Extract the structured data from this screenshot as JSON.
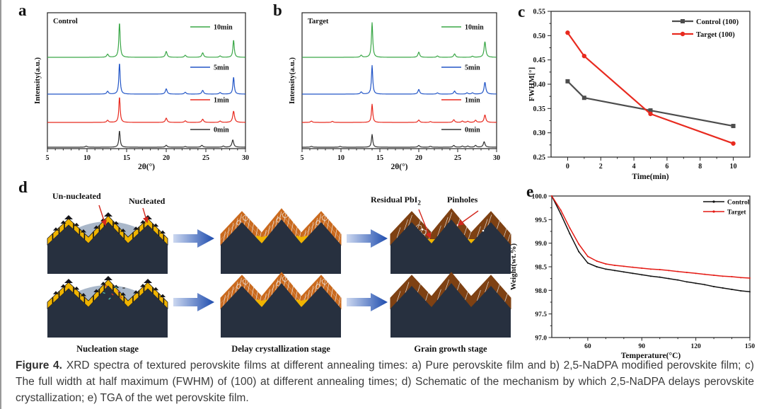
{
  "panels": {
    "a": "a",
    "b": "b",
    "c": "c",
    "d": "d",
    "e": "e"
  },
  "caption": {
    "label": "Figure 4.",
    "text": "XRD spectra of textured perovskite films at different annealing times: a) Pure perovskite film and b) 2,5-NaDPA modified perovskite film; c) The full width at half maximum (FWHM) of (100) at different annealing times; d) Schematic of the mechanism by which 2,5-NaDPA delays perovskite crystallization; e) TGA of the wet perovskite film."
  },
  "schematic": {
    "unnucleated": "Un-nucleated",
    "nucleated": "Nucleated",
    "residual_main": "Residual PbI",
    "residual_sub": "2",
    "pinholes": "Pinholes",
    "stage1": "Nucleation stage",
    "stage2": "Delay crystallization stage",
    "stage3": "Grain growth stage"
  },
  "colors": {
    "green": "#3aa747",
    "blue": "#2356c7",
    "red": "#e82a1f",
    "dark": "#333333",
    "gray_series": "#4d4d4d",
    "substrate": "#27303f",
    "gold": "#f0b400",
    "dome": "#a9b7c9",
    "orange": "#ca6a1e",
    "brown": "#7e4113",
    "boundary": "#eeeeee",
    "arrow_light": "#ccd8f0",
    "arrow_dark": "#1e4cae",
    "annotation_red": "#d3281e"
  },
  "chart_data": [
    {
      "id": "xrd-control",
      "type": "line",
      "panel": "a",
      "inset_label": "Control",
      "xlabel": "2θ(°)",
      "ylabel": "Intensity(a.u.)",
      "xlim": [
        5,
        30
      ],
      "xticks": [
        5,
        10,
        15,
        20,
        25,
        30
      ],
      "note": "stacked XRD traces, intensity in arbitrary units, peaks given as [2theta, relative height]",
      "series": [
        {
          "name": "10min",
          "color": "#3aa747",
          "peaks": [
            [
              12.6,
              0.09
            ],
            [
              14.1,
              1.0
            ],
            [
              20.0,
              0.17
            ],
            [
              22.4,
              0.06
            ],
            [
              24.6,
              0.13
            ],
            [
              26.8,
              0.04
            ],
            [
              28.5,
              0.5
            ]
          ]
        },
        {
          "name": "5min",
          "color": "#2356c7",
          "peaks": [
            [
              12.6,
              0.09
            ],
            [
              14.1,
              1.0
            ],
            [
              20.0,
              0.17
            ],
            [
              22.4,
              0.06
            ],
            [
              24.6,
              0.12
            ],
            [
              26.8,
              0.05
            ],
            [
              28.5,
              0.55
            ]
          ]
        },
        {
          "name": "1min",
          "color": "#e82a1f",
          "peaks": [
            [
              12.6,
              0.08
            ],
            [
              14.1,
              0.95
            ],
            [
              20.0,
              0.16
            ],
            [
              22.4,
              0.06
            ],
            [
              24.6,
              0.12
            ],
            [
              26.8,
              0.05
            ],
            [
              28.5,
              0.42
            ]
          ]
        },
        {
          "name": "0min",
          "color": "#333333",
          "peaks": [
            [
              9.9,
              0.05
            ],
            [
              14.1,
              0.75
            ],
            [
              20.0,
              0.09
            ],
            [
              22.4,
              0.03
            ],
            [
              24.5,
              0.09
            ],
            [
              27.2,
              0.05
            ],
            [
              28.4,
              0.33
            ]
          ]
        }
      ]
    },
    {
      "id": "xrd-target",
      "type": "line",
      "panel": "b",
      "inset_label": "Target",
      "xlabel": "2θ(°)",
      "ylabel": "Intensity(a.u.)",
      "xlim": [
        5,
        30
      ],
      "xticks": [
        5,
        10,
        15,
        20,
        25,
        30
      ],
      "series": [
        {
          "name": "10min",
          "color": "#3aa747",
          "peaks": [
            [
              12.6,
              0.06
            ],
            [
              14.0,
              1.0
            ],
            [
              20.0,
              0.15
            ],
            [
              22.4,
              0.04
            ],
            [
              24.6,
              0.1
            ],
            [
              26.9,
              0.03
            ],
            [
              28.5,
              0.45
            ]
          ]
        },
        {
          "name": "5min",
          "color": "#2356c7",
          "peaks": [
            [
              12.6,
              0.07
            ],
            [
              14.0,
              0.92
            ],
            [
              20.0,
              0.15
            ],
            [
              22.4,
              0.04
            ],
            [
              24.6,
              0.1
            ],
            [
              26.2,
              0.04
            ],
            [
              26.9,
              0.04
            ],
            [
              28.5,
              0.38
            ]
          ]
        },
        {
          "name": "1min",
          "color": "#e82a1f",
          "peaks": [
            [
              6.2,
              0.05
            ],
            [
              8.9,
              0.04
            ],
            [
              14.0,
              0.68
            ],
            [
              20.0,
              0.09
            ],
            [
              21.5,
              0.03
            ],
            [
              24.5,
              0.1
            ],
            [
              25.6,
              0.05
            ],
            [
              26.3,
              0.04
            ],
            [
              27.3,
              0.08
            ],
            [
              28.5,
              0.28
            ]
          ]
        },
        {
          "name": "0min",
          "color": "#333333",
          "peaks": [
            [
              6.2,
              0.04
            ],
            [
              9.9,
              0.04
            ],
            [
              14.0,
              0.58
            ],
            [
              20.0,
              0.08
            ],
            [
              21.5,
              0.04
            ],
            [
              24.5,
              0.08
            ],
            [
              25.6,
              0.05
            ],
            [
              26.3,
              0.05
            ],
            [
              27.3,
              0.08
            ],
            [
              28.4,
              0.25
            ]
          ]
        }
      ]
    },
    {
      "id": "fwhm",
      "type": "line",
      "panel": "c",
      "xlabel": "Time(min)",
      "ylabel": "FWHM[°]",
      "xlim": [
        -1,
        11
      ],
      "ylim": [
        0.25,
        0.55
      ],
      "xticks": [
        0,
        2,
        4,
        6,
        8,
        10
      ],
      "yticks": [
        "0.25",
        "0.30",
        "0.35",
        "0.40",
        "0.45",
        "0.50",
        "0.55"
      ],
      "x": [
        0,
        1,
        5,
        10
      ],
      "series": [
        {
          "name": "Control (100)",
          "color": "#4d4d4d",
          "marker": "square",
          "values": [
            0.406,
            0.372,
            0.346,
            0.314
          ]
        },
        {
          "name": "Target (100)",
          "color": "#e82a1f",
          "marker": "circle",
          "values": [
            0.506,
            0.458,
            0.339,
            0.278
          ]
        }
      ]
    },
    {
      "id": "tga",
      "type": "line",
      "panel": "e",
      "xlabel": "Temperature(°C)",
      "ylabel": "Weight(wt.%)",
      "xlim": [
        40,
        150
      ],
      "ylim": [
        97.0,
        100.0
      ],
      "xticks": [
        60,
        90,
        120,
        150
      ],
      "yticks": [
        "97.0",
        "97.5",
        "98.0",
        "98.5",
        "99.0",
        "99.5",
        "100.0"
      ],
      "series": [
        {
          "name": "Control",
          "color": "#111111",
          "x": [
            40,
            45,
            50,
            55,
            60,
            65,
            70,
            75,
            80,
            85,
            90,
            95,
            100,
            105,
            110,
            115,
            120,
            125,
            130,
            135,
            140,
            145,
            150
          ],
          "y": [
            100.0,
            99.62,
            99.2,
            98.82,
            98.58,
            98.5,
            98.45,
            98.42,
            98.39,
            98.36,
            98.33,
            98.3,
            98.28,
            98.25,
            98.22,
            98.18,
            98.15,
            98.12,
            98.08,
            98.05,
            98.02,
            97.99,
            97.97
          ]
        },
        {
          "name": "Target",
          "color": "#e41a14",
          "x": [
            40,
            45,
            50,
            55,
            60,
            65,
            70,
            75,
            80,
            85,
            90,
            95,
            100,
            105,
            110,
            115,
            120,
            125,
            130,
            135,
            140,
            145,
            150
          ],
          "y": [
            100.0,
            99.7,
            99.32,
            98.98,
            98.72,
            98.62,
            98.56,
            98.53,
            98.51,
            98.49,
            98.47,
            98.45,
            98.44,
            98.42,
            98.4,
            98.38,
            98.36,
            98.34,
            98.32,
            98.3,
            98.29,
            98.27,
            98.26
          ]
        }
      ]
    }
  ]
}
